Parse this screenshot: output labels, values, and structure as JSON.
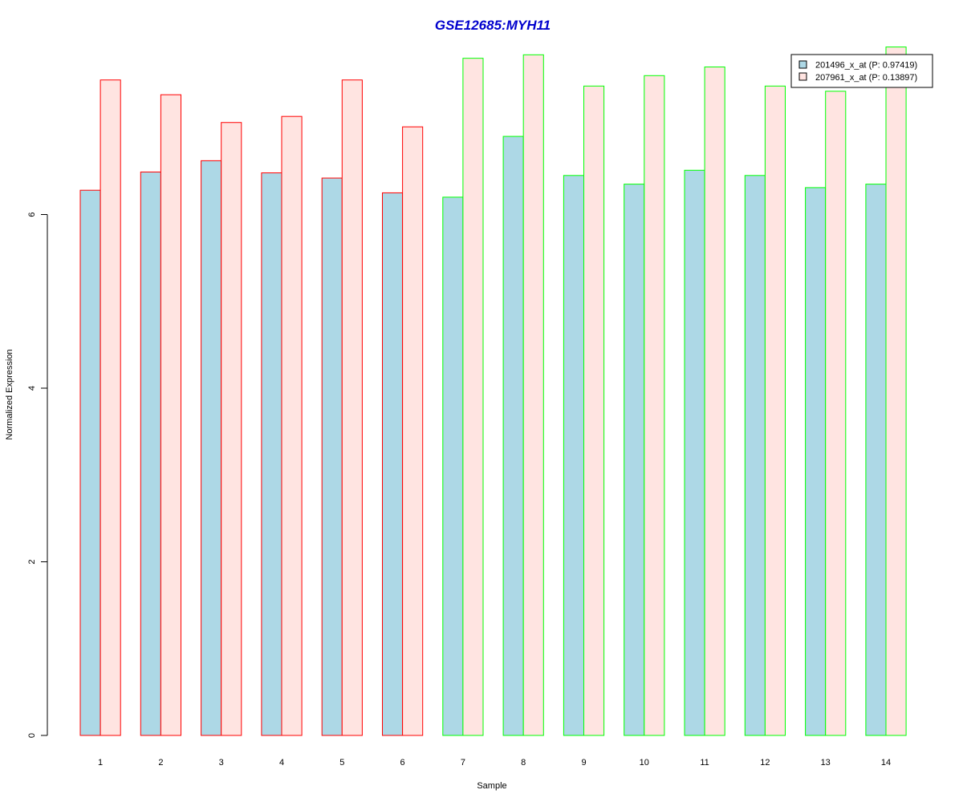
{
  "chart_data": {
    "type": "bar",
    "title": "GSE12685:MYH11",
    "xlabel": "Sample",
    "ylabel": "Normalized Expression",
    "categories": [
      "1",
      "2",
      "3",
      "4",
      "5",
      "6",
      "7",
      "8",
      "9",
      "10",
      "11",
      "12",
      "13",
      "14"
    ],
    "y_ticks": [
      "0",
      "2",
      "4",
      "6"
    ],
    "ylim": [
      0,
      7.9
    ],
    "grid": false,
    "legend_position": "top-right",
    "series": [
      {
        "name": "201496_x_at (P: 0.97419)",
        "fill": "#add8e6",
        "values": [
          6.28,
          6.49,
          6.62,
          6.48,
          6.42,
          6.25,
          6.2,
          6.9,
          6.45,
          6.35,
          6.51,
          6.45,
          6.31,
          6.35
        ]
      },
      {
        "name": "207961_x_at (P: 0.13897)",
        "fill": "#ffe4e1",
        "values": [
          7.55,
          7.38,
          7.06,
          7.13,
          7.55,
          7.01,
          7.8,
          7.84,
          7.48,
          7.6,
          7.7,
          7.48,
          7.42,
          7.93
        ]
      }
    ],
    "group_border_colors": [
      "#ff0000",
      "#ff0000",
      "#ff0000",
      "#ff0000",
      "#ff0000",
      "#ff0000",
      "#00ff00",
      "#00ff00",
      "#00ff00",
      "#00ff00",
      "#00ff00",
      "#00ff00",
      "#00ff00",
      "#00ff00"
    ],
    "title_color": "#0000cd"
  }
}
